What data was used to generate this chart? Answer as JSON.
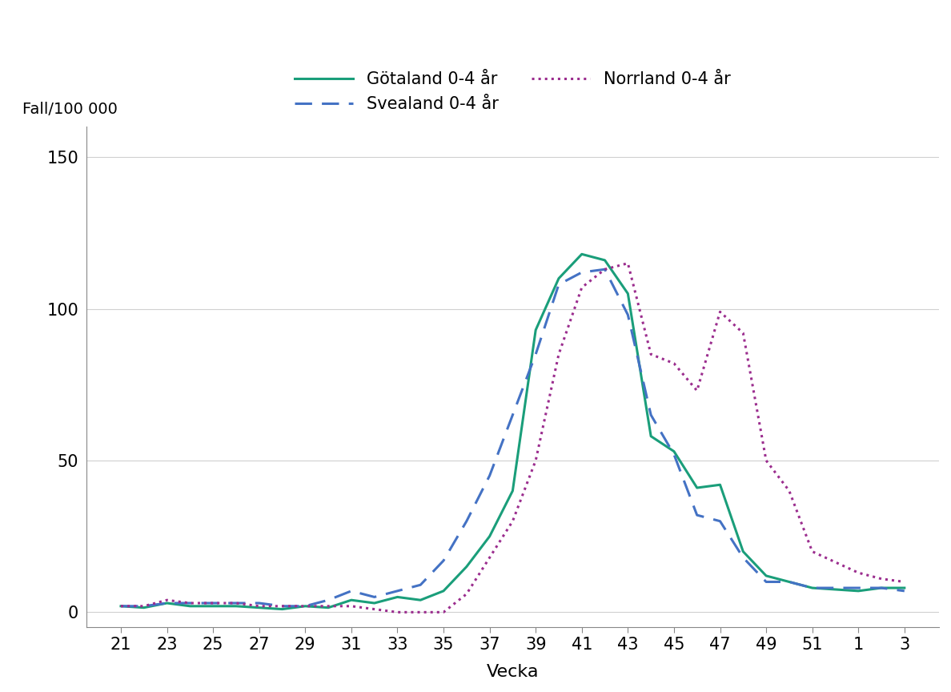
{
  "weeks": [
    21,
    22,
    23,
    24,
    25,
    26,
    27,
    28,
    29,
    30,
    31,
    32,
    33,
    34,
    35,
    36,
    37,
    38,
    39,
    40,
    41,
    42,
    43,
    44,
    45,
    46,
    47,
    48,
    49,
    50,
    51,
    1,
    2,
    3
  ],
  "gotaland": [
    2,
    1.5,
    3,
    2,
    2,
    2,
    1.5,
    1,
    2,
    1.5,
    4,
    3,
    5,
    4,
    7,
    15,
    25,
    40,
    93,
    110,
    118,
    116,
    105,
    58,
    53,
    41,
    42,
    20,
    12,
    10,
    8,
    7,
    8,
    8
  ],
  "svealand": [
    2,
    2,
    3,
    3,
    3,
    3,
    3,
    2,
    2,
    4,
    7,
    5,
    7,
    9,
    17,
    30,
    45,
    65,
    85,
    108,
    112,
    113,
    98,
    65,
    52,
    32,
    30,
    18,
    10,
    10,
    8,
    8,
    8,
    7
  ],
  "norrland": [
    2,
    2,
    4,
    3,
    3,
    3,
    2,
    2,
    2,
    2,
    2,
    1,
    0,
    0,
    0,
    6,
    18,
    30,
    50,
    85,
    107,
    113,
    115,
    85,
    82,
    73,
    99,
    92,
    50,
    40,
    20,
    13,
    11,
    10
  ],
  "x_tick_labels": [
    "21",
    "23",
    "25",
    "27",
    "29",
    "31",
    "33",
    "35",
    "37",
    "39",
    "41",
    "43",
    "45",
    "47",
    "49",
    "51",
    "1",
    "3"
  ],
  "x_tick_positions": [
    21,
    23,
    25,
    27,
    29,
    31,
    33,
    35,
    37,
    39,
    41,
    43,
    45,
    47,
    49,
    51,
    53,
    55
  ],
  "y_ticks": [
    0,
    50,
    100,
    150
  ],
  "ylabel": "Fall/100 000",
  "xlabel": "Vecka",
  "gotaland_color": "#1a9e7a",
  "svealand_color": "#4472c4",
  "norrland_color": "#9b2d8e",
  "legend_labels": [
    "Götaland 0-4 år",
    "Svealand 0-4 år",
    "Norrland 0-4 år"
  ],
  "background_color": "#ffffff",
  "ylim": [
    -5,
    160
  ],
  "grid_color": "#d0d0d0"
}
